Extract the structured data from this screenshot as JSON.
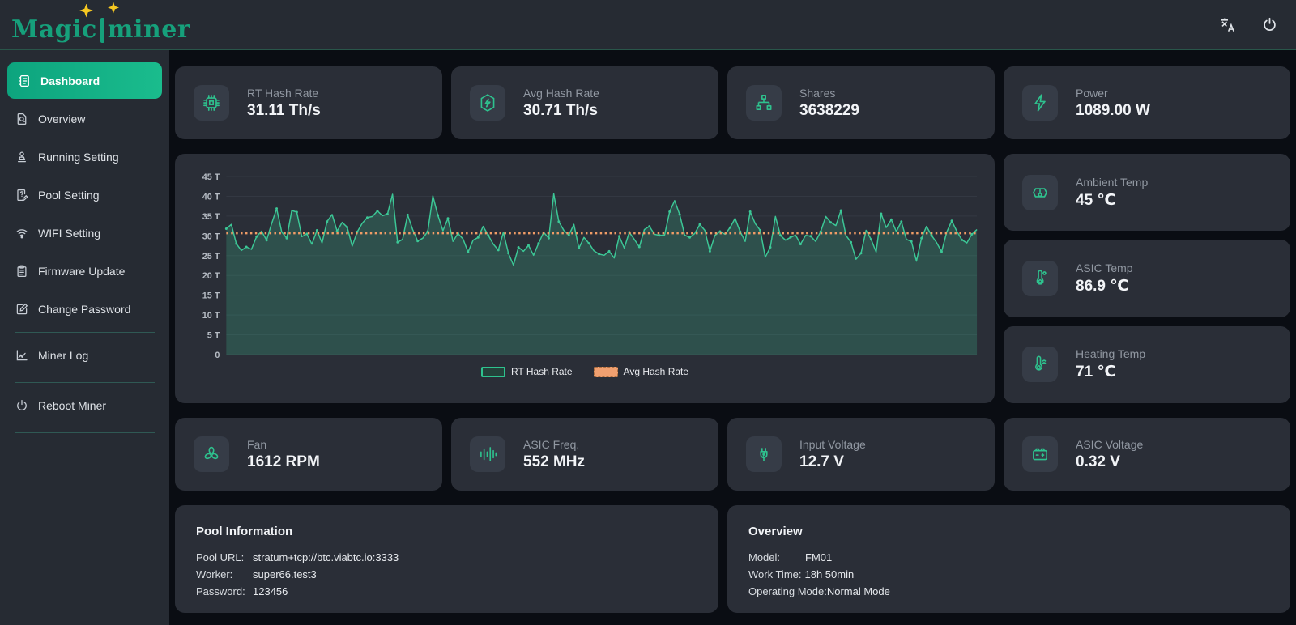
{
  "header": {
    "logo_part1": "Magic",
    "logo_part2": "miner"
  },
  "sidebar": {
    "items": [
      {
        "label": "Dashboard",
        "active": true
      },
      {
        "label": "Overview"
      },
      {
        "label": "Running Setting"
      },
      {
        "label": "Pool Setting"
      },
      {
        "label": "WIFI Setting"
      },
      {
        "label": "Firmware Update"
      },
      {
        "label": "Change Password"
      },
      {
        "label": "Miner Log"
      },
      {
        "label": "Reboot Miner"
      }
    ]
  },
  "stats": {
    "row1": [
      {
        "icon": "chip-icon",
        "label": "RT Hash Rate",
        "value": "31.11 Th/s"
      },
      {
        "icon": "hexagon-bolt-icon",
        "label": "Avg Hash Rate",
        "value": "30.71 Th/s"
      },
      {
        "icon": "network-icon",
        "label": "Shares",
        "value": "3638229"
      },
      {
        "icon": "bolt-icon",
        "label": "Power",
        "value": "1089.00 W"
      }
    ],
    "temps": [
      {
        "icon": "ambient-thermometer-icon",
        "label": "Ambient Temp",
        "value": "45 ℃"
      },
      {
        "icon": "thermometer-degree-icon",
        "label": "ASIC Temp",
        "value": "86.9 ℃"
      },
      {
        "icon": "thermometer-heat-icon",
        "label": "Heating Temp",
        "value": "71 ℃"
      }
    ],
    "row2": [
      {
        "icon": "fan-icon",
        "label": "Fan",
        "value": "1612 RPM"
      },
      {
        "icon": "frequency-icon",
        "label": "ASIC Freq.",
        "value": "552 MHz"
      },
      {
        "icon": "plug-icon",
        "label": "Input Voltage",
        "value": "12.7 V"
      },
      {
        "icon": "battery-icon",
        "label": "ASIC Voltage",
        "value": "0.32 V"
      }
    ]
  },
  "chart_data": {
    "type": "line",
    "title": "",
    "xlabel": "",
    "ylabel": "",
    "ylim": [
      0,
      45
    ],
    "grid": true,
    "legend_position": "bottom",
    "legend": [
      "RT Hash Rate",
      "Avg Hash Rate"
    ],
    "yticks": [
      {
        "value": 0,
        "label": "0"
      },
      {
        "value": 5,
        "label": "5 T"
      },
      {
        "value": 10,
        "label": "10 T"
      },
      {
        "value": 15,
        "label": "15 T"
      },
      {
        "value": 20,
        "label": "20 T"
      },
      {
        "value": 25,
        "label": "25 T"
      },
      {
        "value": 30,
        "label": "30 T"
      },
      {
        "value": 35,
        "label": "35 T"
      },
      {
        "value": 40,
        "label": "40 T"
      },
      {
        "value": 45,
        "label": "45 T"
      }
    ],
    "series": [
      {
        "name": "RT Hash Rate",
        "style": "area-line",
        "color": "#3cc796",
        "values": [
          31.8,
          32.9,
          28.0,
          26.3,
          27.2,
          26.6,
          29.8,
          31.2,
          28.9,
          33.1,
          36.9,
          31.0,
          29.4,
          36.4,
          36.0,
          29.8,
          30.5,
          27.9,
          31.4,
          28.2,
          33.6,
          35.4,
          31.2,
          33.4,
          32.2,
          27.4,
          31.0,
          33.2,
          34.6,
          34.9,
          36.3,
          35.1,
          35.5,
          40.5,
          28.4,
          29.1,
          35.3,
          31.6,
          28.7,
          29.4,
          31.1,
          40.1,
          35.2,
          31.3,
          34.4,
          28.6,
          30.6,
          29.2,
          25.9,
          28.9,
          29.6,
          32.4,
          30.1,
          27.9,
          26.4,
          30.9,
          25.6,
          22.6,
          27.1,
          26.1,
          27.6,
          25.1,
          28.1,
          30.9,
          29.4,
          40.6,
          33.6,
          31.4,
          30.2,
          32.9,
          26.9,
          29.6,
          28.1,
          26.2,
          25.4,
          25.1,
          26.1,
          24.4,
          29.9,
          26.9,
          30.9,
          29.1,
          27.2,
          31.6,
          32.4,
          30.4,
          30.1,
          30.2,
          36.1,
          38.9,
          35.4,
          30.2,
          29.6,
          30.6,
          32.9,
          31.4,
          26.1,
          30.1,
          31.1,
          30.4,
          32.1,
          34.4,
          31.1,
          28.6,
          36.1,
          33.1,
          31.4,
          24.6,
          27.1,
          34.9,
          30.1,
          28.9,
          29.6,
          30.2,
          27.9,
          30.1,
          29.9,
          28.6,
          31.1,
          34.9,
          33.4,
          32.6,
          36.4,
          30.1,
          28.4,
          24.1,
          25.6,
          31.4,
          29.1,
          25.9,
          35.6,
          32.1,
          34.1,
          31.1,
          33.6,
          29.1,
          28.6,
          23.6,
          29.4,
          32.4,
          30.1,
          28.3,
          26.0,
          30.9,
          33.8,
          31.2,
          29.0,
          28.2,
          30.4,
          31.6
        ]
      },
      {
        "name": "Avg Hash Rate",
        "style": "dotted-reference-line",
        "color": "#f09c66",
        "value": 30.71
      }
    ]
  },
  "pool": {
    "title": "Pool Information",
    "rows": [
      {
        "label": "Pool URL:",
        "value": "stratum+tcp://btc.viabtc.io:3333"
      },
      {
        "label": "Worker:",
        "value": "super66.test3"
      },
      {
        "label": "Password:",
        "value": "123456"
      }
    ]
  },
  "overview": {
    "title": "Overview",
    "rows": [
      {
        "label": "Model:",
        "value": "FM01"
      },
      {
        "label": "Work Time:",
        "value": "18h 50min"
      },
      {
        "label": "Operating Mode:",
        "value": "Normal Mode"
      }
    ]
  },
  "colors": {
    "accent": "#2ec28e",
    "avg_line": "#f09c66",
    "card_bg": "#2a2e37",
    "page_bg": "#0a0d13",
    "sidebar_bg": "#262b33",
    "active_item": "#12b185",
    "logo": "#16a07b",
    "star": "#f6c821"
  }
}
